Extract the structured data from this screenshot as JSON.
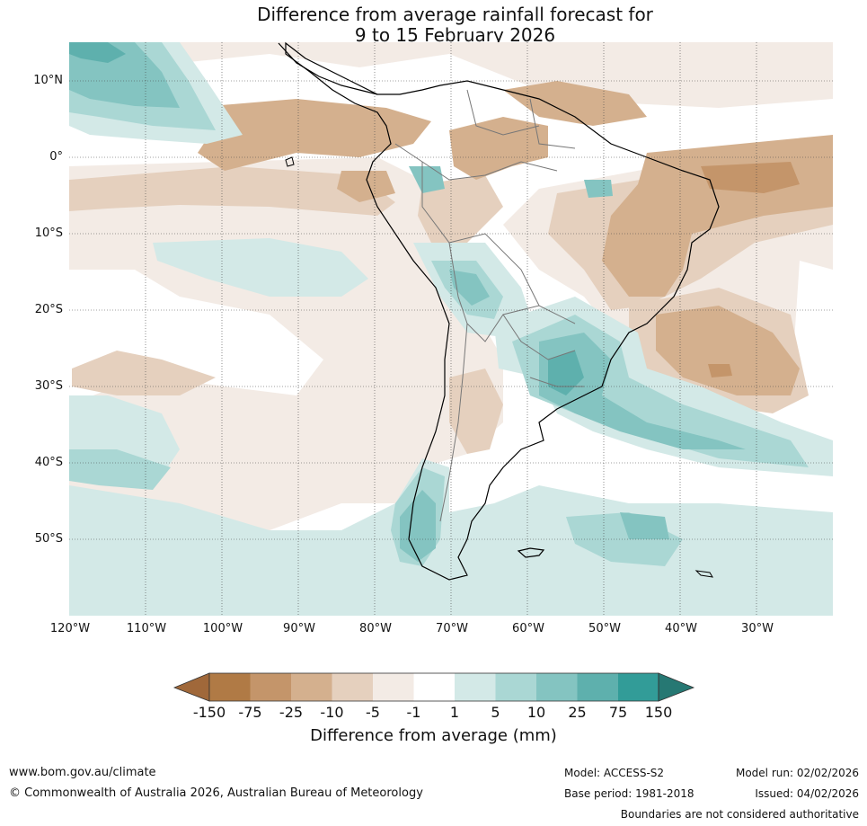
{
  "title_line1": "Difference from average rainfall forecast for",
  "title_line2": "9 to 15 February 2026",
  "lat_labels": [
    "10°N",
    "0°",
    "10°S",
    "20°S",
    "30°S",
    "40°S",
    "50°S"
  ],
  "lon_labels": [
    "120°W",
    "110°W",
    "100°W",
    "90°W",
    "80°W",
    "70°W",
    "60°W",
    "50°W",
    "40°W",
    "30°W"
  ],
  "colorbar": {
    "ticks": [
      "-150",
      "-75",
      "-25",
      "-10",
      "-5",
      "-1",
      "1",
      "5",
      "10",
      "25",
      "75",
      "150"
    ],
    "colors": [
      "#a0683a",
      "#b07a45",
      "#c4956a",
      "#d4b08e",
      "#e5d0be",
      "#f3ebe5",
      "#ffffff",
      "#d3e9e7",
      "#aad7d4",
      "#84c4c1",
      "#5eb0ad",
      "#329c98",
      "#267873"
    ],
    "label": "Difference from average (mm)"
  },
  "footer": {
    "url": "www.bom.gov.au/climate",
    "copyright": "© Commonwealth of Australia 2026, Australian Bureau of Meteorology",
    "model": "Model: ACCESS-S2",
    "base_period": "Base period: 1981-2018",
    "model_run": "Model run: 02/02/2026",
    "issued": "Issued: 04/02/2026",
    "disclaimer": "Boundaries are not considered authoritative"
  }
}
